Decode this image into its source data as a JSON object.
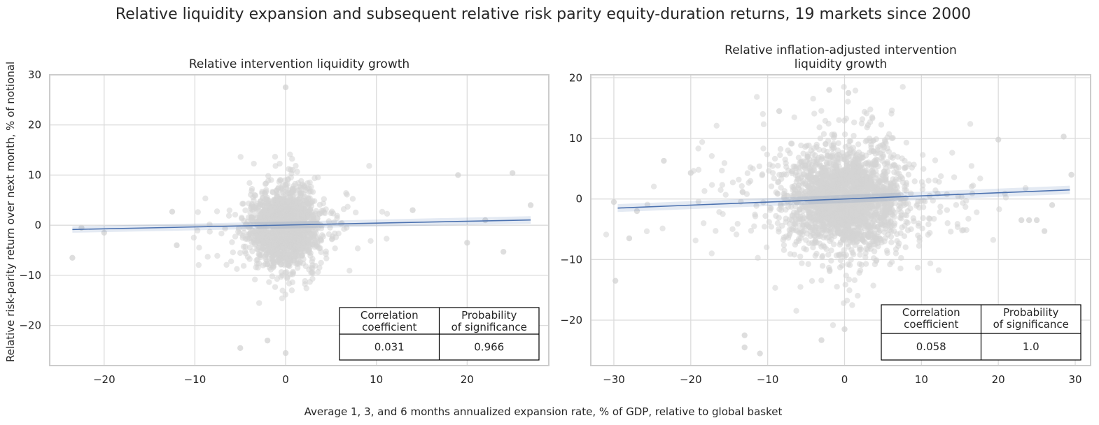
{
  "figure": {
    "title": "Relative liquidity expansion and subsequent relative risk parity equity-duration returns, 19 markets since 2000",
    "shared_xlabel": "Average 1, 3, and 6 months annualized expansion rate, % of GDP, relative to global basket",
    "shared_ylabel": "Relative risk-parity return over next month, % of notional"
  },
  "colors": {
    "point": "#d3d3d3",
    "regression": "#4c72b0",
    "grid": "#dcdcdc",
    "spine": "#cccccc",
    "table_border": "#000000"
  },
  "chart_data": [
    {
      "type": "scatter",
      "title_lines": [
        "Relative intervention liquidity growth"
      ],
      "xlim": [
        -26,
        29
      ],
      "ylim": [
        -28,
        30
      ],
      "xticks": [
        -20,
        -10,
        0,
        10,
        20
      ],
      "xtick_labels": [
        "−20",
        "−10",
        "0",
        "10",
        "20"
      ],
      "yticks": [
        -20,
        -10,
        0,
        10,
        20,
        30
      ],
      "ytick_labels": [
        "−20",
        "−10",
        "0",
        "10",
        "20",
        "30"
      ],
      "grid": true,
      "scatter_summary": {
        "n": 1800,
        "x_center": 0,
        "x_spread": 1.8,
        "y_center": -0.5,
        "y_spread": 3.6
      },
      "notable_points": [
        {
          "x": -23.5,
          "y": -6.5
        },
        {
          "x": -22.5,
          "y": -0.5
        },
        {
          "x": -20,
          "y": -1.5
        },
        {
          "x": -12.5,
          "y": 2.7
        },
        {
          "x": -12,
          "y": -4
        },
        {
          "x": -5,
          "y": -24.5
        },
        {
          "x": -2,
          "y": -23
        },
        {
          "x": 0,
          "y": 27.5
        },
        {
          "x": 0,
          "y": -25.5
        },
        {
          "x": 14,
          "y": 3
        },
        {
          "x": 19,
          "y": 10
        },
        {
          "x": 20,
          "y": -3.5
        },
        {
          "x": 22,
          "y": 1
        },
        {
          "x": 24,
          "y": -5.3
        },
        {
          "x": 25,
          "y": 10.4
        },
        {
          "x": 27,
          "y": 4
        }
      ],
      "regression": {
        "x": [
          -23.5,
          27
        ],
        "y": [
          -0.85,
          1.05
        ],
        "ci_halfwidth": [
          0.65,
          0.75
        ]
      },
      "stats_table": {
        "headers": [
          [
            "Correlation",
            "coefficient"
          ],
          [
            "Probability",
            "of significance"
          ]
        ],
        "values": [
          "0.031",
          "0.966"
        ]
      }
    },
    {
      "type": "scatter",
      "title_lines": [
        "Relative inflation-adjusted intervention",
        "liquidity growth"
      ],
      "xlim": [
        -33,
        32
      ],
      "ylim": [
        -27.5,
        20.5
      ],
      "xticks": [
        -30,
        -20,
        -10,
        0,
        10,
        20,
        30
      ],
      "xtick_labels": [
        "−30",
        "−20",
        "−10",
        "0",
        "10",
        "20",
        "30"
      ],
      "yticks": [
        -20,
        -10,
        0,
        10,
        20
      ],
      "ytick_labels": [
        "−20",
        "−10",
        "0",
        "10",
        "20"
      ],
      "grid": true,
      "scatter_summary": {
        "n": 2300,
        "x_center": 0,
        "x_spread": 3.8,
        "y_center": 0,
        "y_spread": 4.2
      },
      "notable_points": [
        {
          "x": -30,
          "y": -0.5
        },
        {
          "x": -29.8,
          "y": -13.5
        },
        {
          "x": -28,
          "y": -6.5
        },
        {
          "x": -27,
          "y": -2
        },
        {
          "x": -23.5,
          "y": 6.3
        },
        {
          "x": -20,
          "y": 4.3
        },
        {
          "x": -13,
          "y": -22.5
        },
        {
          "x": -13,
          "y": -24.5
        },
        {
          "x": -11,
          "y": -25.5
        },
        {
          "x": -8.5,
          "y": 14.5
        },
        {
          "x": -3,
          "y": -23.3
        },
        {
          "x": -2,
          "y": 18
        },
        {
          "x": 0,
          "y": -21.5
        },
        {
          "x": 0.5,
          "y": 17.5
        },
        {
          "x": 20,
          "y": 9.8
        },
        {
          "x": 23,
          "y": -3.5
        },
        {
          "x": 24,
          "y": -3.5
        },
        {
          "x": 25,
          "y": -3.5
        },
        {
          "x": 26,
          "y": -5.3
        },
        {
          "x": 27,
          "y": -1
        },
        {
          "x": 28.5,
          "y": 10.3
        },
        {
          "x": 29.5,
          "y": 4
        }
      ],
      "regression": {
        "x": [
          -29.5,
          29.3
        ],
        "y": [
          -1.5,
          1.5
        ],
        "ci_halfwidth": [
          0.65,
          0.7
        ]
      },
      "stats_table": {
        "headers": [
          [
            "Correlation",
            "coefficient"
          ],
          [
            "Probability",
            "of significance"
          ]
        ],
        "values": [
          "0.058",
          "1.0"
        ]
      }
    }
  ]
}
